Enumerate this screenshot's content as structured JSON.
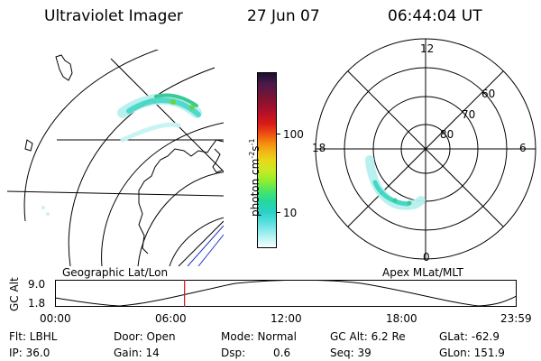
{
  "header": {
    "title": "Ultraviolet Imager",
    "date": "27 Jun 07",
    "time": "06:44:04 UT"
  },
  "colorbar": {
    "label_main": "photon cm",
    "label_sup1": "-2",
    "label_s": "s",
    "label_sup2": "-1",
    "ticks": [
      "100",
      "10"
    ],
    "colors": [
      "#1a0f2e",
      "#4a1a4a",
      "#7a1432",
      "#b0102a",
      "#d81a18",
      "#ef5012",
      "#f38a10",
      "#f3b516",
      "#e8d818",
      "#c8ea24",
      "#90ee30",
      "#46e46a",
      "#22d8a0",
      "#2ad2c8",
      "#5ae0e0",
      "#9eeeee",
      "#d6f8f8",
      "#f6ffff"
    ]
  },
  "geo_map": {
    "caption": "Geographic Lat/Lon"
  },
  "polar_plot": {
    "caption": "Apex MLat/MLT",
    "mlt_labels": {
      "top": "12",
      "left": "18",
      "right": "6",
      "bottom": "0"
    },
    "lat_labels": [
      "60",
      "70",
      "80"
    ]
  },
  "timeline": {
    "axis_label": "GC Alt",
    "y_ticks": [
      "9.0",
      "1.8"
    ],
    "x_ticks": [
      "00:00",
      "06:00",
      "12:00",
      "18:00",
      "23:59"
    ],
    "current_time_fraction": 0.2806
  },
  "info": {
    "row1": {
      "flt": "Flt: LBHL",
      "door": "Door: Open",
      "mode": "Mode: Normal",
      "gcalt": "GC Alt: 6.2 Re",
      "glat": "GLat: -62.9"
    },
    "row2": {
      "ip": "IP: 36.0",
      "gain": "Gain: 14",
      "dsp_label": "Dsp:",
      "dsp_value": "0.6",
      "seq": "Seq: 39",
      "glon": "GLon: 151.9"
    }
  }
}
